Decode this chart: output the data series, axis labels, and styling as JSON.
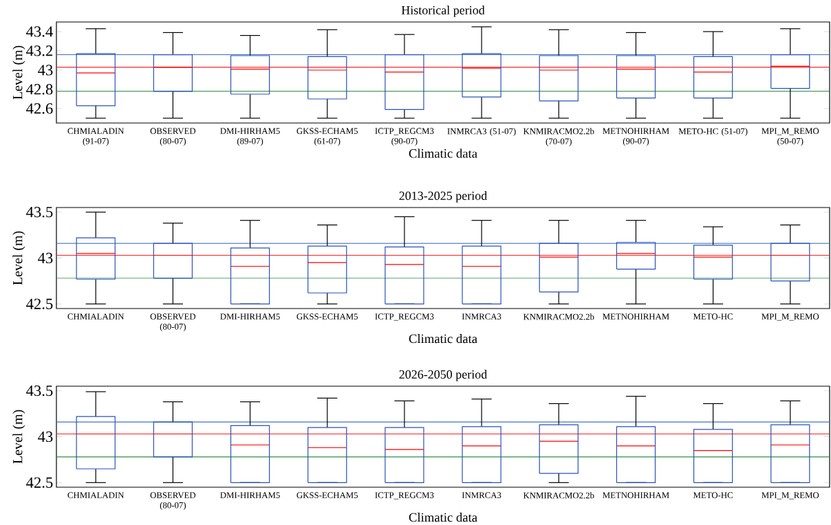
{
  "chart_data": [
    {
      "type": "box",
      "title": "Historical period",
      "xlabel": "Climatic data",
      "ylabel": "Level (m)",
      "categories": [
        "CHMIALADIN (91-07)",
        "OBSERVED (80-07)",
        "DMI-HIRHAM5 (89-07)",
        "GKSS-ECHAM5 (61-07)",
        "ICTP_REGCM3 (90-07)",
        "INMRCA3 (51-07)",
        "KNMIRACMO2.2b (70-07)",
        "METNOHIRHAM (90-07)",
        "METO-HC (51-07)",
        "MPI_M_REMO (50-07)"
      ],
      "ylim": [
        42.45,
        43.5
      ],
      "yticks": [
        42.6,
        42.8,
        43,
        43.2,
        43.4
      ],
      "ref_lines": [
        {
          "axis": "y",
          "value": 43.16,
          "color": "#4472c4"
        },
        {
          "axis": "y",
          "value": 43.03,
          "color": "#ff2020"
        },
        {
          "axis": "y",
          "value": 42.78,
          "color": "#2e9140"
        }
      ],
      "series": [
        {
          "color": "#2a52be",
          "boxes": [
            {
              "low": 42.5,
              "q1": 42.63,
              "median": 42.97,
              "q3": 43.17,
              "high": 43.43
            },
            {
              "low": 42.5,
              "q1": 42.78,
              "median": 43.03,
              "q3": 43.16,
              "high": 43.39
            },
            {
              "low": 42.5,
              "q1": 42.75,
              "median": 43.01,
              "q3": 43.15,
              "high": 43.36
            },
            {
              "low": 42.5,
              "q1": 42.7,
              "median": 43.0,
              "q3": 43.14,
              "high": 43.42
            },
            {
              "low": 42.5,
              "q1": 42.59,
              "median": 42.98,
              "q3": 43.16,
              "high": 43.37
            },
            {
              "low": 42.5,
              "q1": 42.72,
              "median": 43.02,
              "q3": 43.17,
              "high": 43.45
            },
            {
              "low": 42.5,
              "q1": 42.68,
              "median": 43.0,
              "q3": 43.15,
              "high": 43.42
            },
            {
              "low": 42.5,
              "q1": 42.71,
              "median": 43.01,
              "q3": 43.15,
              "high": 43.39
            },
            {
              "low": 42.5,
              "q1": 42.71,
              "median": 42.98,
              "q3": 43.14,
              "high": 43.4
            },
            {
              "low": 42.5,
              "q1": 42.81,
              "median": 43.04,
              "q3": 43.16,
              "high": 43.43
            }
          ]
        }
      ]
    },
    {
      "type": "box",
      "title": "2013-2025 period",
      "xlabel": "Climatic data",
      "ylabel": "Level (m)",
      "categories": [
        "CHMIALADIN",
        "OBSERVED (80-07)",
        "DMI-HIRHAM5",
        "GKSS-ECHAM5",
        "ICTP_REGCM3",
        "INMRCA3",
        "KNMIRACMO2.2b",
        "METNOHIRHAM",
        "METO-HC",
        "MPI_M_REMO"
      ],
      "ylim": [
        42.45,
        43.55
      ],
      "yticks": [
        42.5,
        43,
        43.5
      ],
      "ref_lines": [
        {
          "axis": "y",
          "value": 43.16,
          "color": "#4472c4"
        },
        {
          "axis": "y",
          "value": 43.03,
          "color": "#ff2020"
        },
        {
          "axis": "y",
          "value": 42.78,
          "color": "#2e9140"
        }
      ],
      "series": [
        {
          "color": "#2a52be",
          "boxes": [
            {
              "low": 42.5,
              "q1": 42.77,
              "median": 43.05,
              "q3": 43.22,
              "high": 43.5
            },
            {
              "low": 42.5,
              "q1": 42.78,
              "median": 43.03,
              "q3": 43.16,
              "high": 43.38
            },
            {
              "low": 42.5,
              "q1": 42.5,
              "median": 42.91,
              "q3": 43.11,
              "high": 43.41
            },
            {
              "low": 42.5,
              "q1": 42.62,
              "median": 42.95,
              "q3": 43.13,
              "high": 43.36
            },
            {
              "low": 42.5,
              "q1": 42.5,
              "median": 42.93,
              "q3": 43.12,
              "high": 43.45
            },
            {
              "low": 42.5,
              "q1": 42.5,
              "median": 42.91,
              "q3": 43.13,
              "high": 43.41
            },
            {
              "low": 42.5,
              "q1": 42.63,
              "median": 43.01,
              "q3": 43.16,
              "high": 43.41
            },
            {
              "low": 42.5,
              "q1": 42.88,
              "median": 43.05,
              "q3": 43.17,
              "high": 43.41
            },
            {
              "low": 42.5,
              "q1": 42.77,
              "median": 43.01,
              "q3": 43.14,
              "high": 43.34
            },
            {
              "low": 42.5,
              "q1": 42.75,
              "median": 43.03,
              "q3": 43.16,
              "high": 43.36
            }
          ]
        }
      ]
    },
    {
      "type": "box",
      "title": "2026-2050 period",
      "xlabel": "Climatic data",
      "ylabel": "Level (m)",
      "categories": [
        "CHMIALADIN",
        "OBSERVED (80-07)",
        "DMI-HIRHAM5",
        "GKSS-ECHAM5",
        "ICTP_REGCM3",
        "INMRCA3",
        "KNMIRACMO2.2b",
        "METNOHIRHAM",
        "METO-HC",
        "MPI_M_REMO"
      ],
      "ylim": [
        42.45,
        43.55
      ],
      "yticks": [
        42.5,
        43,
        43.5
      ],
      "ref_lines": [
        {
          "axis": "y",
          "value": 43.16,
          "color": "#4472c4"
        },
        {
          "axis": "y",
          "value": 43.03,
          "color": "#ff2020"
        },
        {
          "axis": "y",
          "value": 42.78,
          "color": "#2e9140"
        }
      ],
      "series": [
        {
          "color": "#2a52be",
          "boxes": [
            {
              "low": 42.5,
              "q1": 42.65,
              "median": 43.03,
              "q3": 43.22,
              "high": 43.49
            },
            {
              "low": 42.5,
              "q1": 42.78,
              "median": 43.03,
              "q3": 43.16,
              "high": 43.38
            },
            {
              "low": 42.5,
              "q1": 42.5,
              "median": 42.91,
              "q3": 43.12,
              "high": 43.38
            },
            {
              "low": 42.5,
              "q1": 42.5,
              "median": 42.88,
              "q3": 43.1,
              "high": 43.42
            },
            {
              "low": 42.5,
              "q1": 42.5,
              "median": 42.86,
              "q3": 43.1,
              "high": 43.39
            },
            {
              "low": 42.5,
              "q1": 42.5,
              "median": 42.9,
              "q3": 43.11,
              "high": 43.41
            },
            {
              "low": 42.5,
              "q1": 42.6,
              "median": 42.95,
              "q3": 43.13,
              "high": 43.36
            },
            {
              "low": 42.5,
              "q1": 42.5,
              "median": 42.9,
              "q3": 43.11,
              "high": 43.44
            },
            {
              "low": 42.5,
              "q1": 42.5,
              "median": 42.85,
              "q3": 43.08,
              "high": 43.36
            },
            {
              "low": 42.5,
              "q1": 42.5,
              "median": 42.91,
              "q3": 43.13,
              "high": 43.39
            }
          ]
        }
      ]
    }
  ]
}
